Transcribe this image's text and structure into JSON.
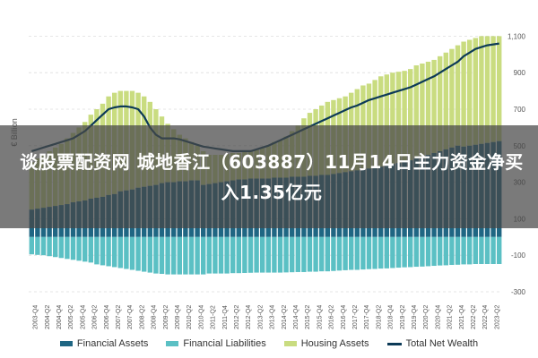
{
  "headline": "谈股票配资网 城地香江（603887）11月14日主力资金净买入1.35亿元",
  "chart_data": {
    "type": "bar",
    "ylabel": "€ Billion",
    "ylim": [
      -300,
      1200
    ],
    "yticks": [
      -300,
      -100,
      100,
      300,
      500,
      700,
      900,
      1100
    ],
    "ytick_labels": [
      "-300",
      "-100",
      "100",
      "300",
      "500",
      "700",
      "900",
      "1,100"
    ],
    "grid": true,
    "legend_position": "bottom",
    "x_tick_labels": [
      "2003-Q4",
      "2004-Q2",
      "2004-Q4",
      "2005-Q2",
      "2005-Q4",
      "2006-Q2",
      "2006-Q4",
      "2007-Q2",
      "2007-Q4",
      "2008-Q2",
      "2008-Q4",
      "2009-Q2",
      "2009-Q4",
      "2010-Q2",
      "2010-Q4",
      "2011-Q2",
      "2011-Q4",
      "2012-Q2",
      "2012-Q4",
      "2013-Q2",
      "2013-Q4",
      "2014-Q2",
      "2014-Q4",
      "2015-Q2",
      "2015-Q4",
      "2016-Q2",
      "2016-Q4",
      "2017-Q2",
      "2017-Q4",
      "2018-Q2",
      "2018-Q4",
      "2019-Q2",
      "2019-Q4",
      "2020-Q2",
      "2020-Q4",
      "2021-Q2",
      "2021-Q4",
      "2022-Q2",
      "2022-Q4",
      "2023-Q2"
    ],
    "series": [
      {
        "name": "Financial Assets",
        "color": "#1f6683",
        "values": [
          150,
          155,
          160,
          165,
          170,
          175,
          180,
          190,
          195,
          200,
          210,
          215,
          220,
          230,
          235,
          250,
          255,
          260,
          270,
          275,
          280,
          285,
          295,
          300,
          300,
          305,
          305,
          310,
          310,
          285,
          290,
          295,
          300,
          305,
          310,
          315,
          315,
          320,
          320,
          320,
          320,
          325,
          325,
          325,
          330,
          330,
          330,
          335,
          335,
          340,
          340,
          345,
          350,
          355,
          360,
          365,
          370,
          375,
          380,
          385,
          390,
          400,
          405,
          410,
          420,
          430,
          440,
          450,
          460,
          470,
          480,
          490,
          500,
          495,
          500,
          505,
          510,
          515,
          520,
          525
        ]
      },
      {
        "name": "Financial Liabilities",
        "color": "#5bc0c4",
        "values": [
          -95,
          -98,
          -100,
          -105,
          -110,
          -115,
          -120,
          -125,
          -130,
          -135,
          -140,
          -150,
          -155,
          -160,
          -165,
          -170,
          -175,
          -180,
          -185,
          -190,
          -195,
          -200,
          -202,
          -205,
          -205,
          -205,
          -205,
          -205,
          -205,
          -205,
          -200,
          -200,
          -200,
          -200,
          -198,
          -198,
          -197,
          -196,
          -195,
          -195,
          -195,
          -195,
          -195,
          -194,
          -193,
          -192,
          -192,
          -190,
          -190,
          -188,
          -188,
          -186,
          -184,
          -182,
          -180,
          -180,
          -178,
          -176,
          -175,
          -173,
          -172,
          -170,
          -168,
          -166,
          -165,
          -163,
          -162,
          -160,
          -158,
          -156,
          -155,
          -153,
          -152,
          -150,
          -150,
          -148,
          -148,
          -148,
          -148,
          -148
        ]
      },
      {
        "name": "Housing Assets",
        "color": "#c9dc80",
        "values": [
          410,
          430,
          450,
          470,
          490,
          510,
          540,
          570,
          600,
          630,
          670,
          700,
          730,
          770,
          790,
          800,
          800,
          800,
          790,
          770,
          740,
          700,
          660,
          620,
          590,
          560,
          540,
          520,
          500,
          470,
          450,
          450,
          450,
          455,
          460,
          460,
          465,
          470,
          480,
          490,
          500,
          520,
          530,
          550,
          580,
          610,
          650,
          680,
          700,
          720,
          740,
          750,
          760,
          770,
          790,
          810,
          830,
          840,
          860,
          880,
          890,
          900,
          905,
          910,
          920,
          940,
          950,
          960,
          970,
          990,
          1010,
          1030,
          1050,
          1070,
          1080,
          1090,
          1100,
          1100,
          1100,
          1100
        ]
      },
      {
        "name": "Total Net Wealth",
        "color": "#0c3a57",
        "values": [
          470,
          480,
          490,
          500,
          510,
          520,
          530,
          540,
          560,
          580,
          610,
          640,
          670,
          700,
          710,
          715,
          715,
          710,
          700,
          660,
          600,
          560,
          540,
          540,
          540,
          535,
          525,
          515,
          505,
          495,
          490,
          485,
          480,
          475,
          470,
          470,
          470,
          470,
          480,
          490,
          500,
          515,
          530,
          545,
          560,
          575,
          590,
          605,
          620,
          635,
          650,
          665,
          680,
          695,
          710,
          720,
          735,
          750,
          760,
          770,
          780,
          790,
          800,
          810,
          820,
          835,
          850,
          865,
          880,
          900,
          920,
          940,
          960,
          990,
          1010,
          1030,
          1040,
          1050,
          1055,
          1060
        ]
      }
    ]
  },
  "legend": [
    {
      "label": "Financial Assets",
      "color": "#1f6683",
      "kind": "bar"
    },
    {
      "label": "Financial Liabilities",
      "color": "#5bc0c4",
      "kind": "bar"
    },
    {
      "label": "Housing Assets",
      "color": "#c9dc80",
      "kind": "bar"
    },
    {
      "label": "Total Net Wealth",
      "color": "#0c3a57",
      "kind": "line"
    }
  ]
}
